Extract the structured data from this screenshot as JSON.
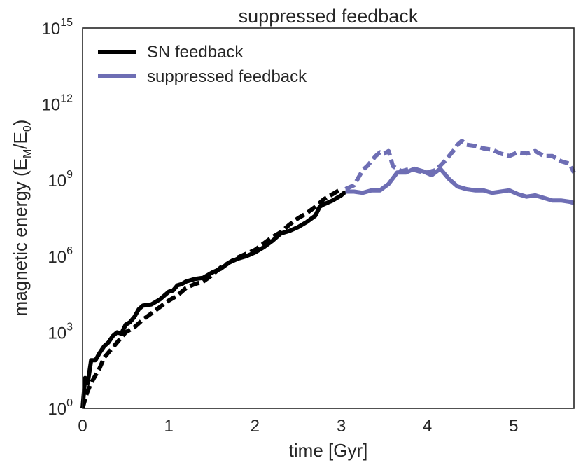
{
  "chart_data": {
    "type": "line",
    "title": "suppressed feedback",
    "xlabel": "time [Gyr]",
    "ylabel": "magnetic energy (E",
    "ylabel_sub1": "M",
    "ylabel_mid": "/E",
    "ylabel_sub2": "0",
    "ylabel_end": ")",
    "xlim": [
      0,
      5.7
    ],
    "ylim_log10": [
      0,
      15
    ],
    "x_ticks": [
      0,
      1,
      2,
      3,
      4,
      5
    ],
    "x_tick_labels": [
      "0",
      "1",
      "2",
      "3",
      "4",
      "5"
    ],
    "y_ticks_log10": [
      0,
      3,
      6,
      9,
      12,
      15
    ],
    "y_tick_base": "10",
    "y_tick_exponents": [
      "0",
      "3",
      "6",
      "9",
      "12",
      "15"
    ],
    "legend_position": "top-left",
    "colors": {
      "sn": "#000000",
      "suppressed": "#6e6eb4",
      "frame": "#262626"
    },
    "series": [
      {
        "name": "SN feedback",
        "legend": true,
        "color": "#000000",
        "style": "solid",
        "x": [
          0.0,
          0.03,
          0.06,
          0.1,
          0.15,
          0.2,
          0.25,
          0.3,
          0.35,
          0.4,
          0.45,
          0.5,
          0.55,
          0.6,
          0.65,
          0.7,
          0.8,
          0.9,
          1.0,
          1.05,
          1.1,
          1.15,
          1.2,
          1.3,
          1.4,
          1.5,
          1.6,
          1.7,
          1.8,
          1.9,
          2.0,
          2.1,
          2.2,
          2.3,
          2.4,
          2.5,
          2.6,
          2.7,
          2.75,
          2.8,
          2.9,
          3.0,
          3.05
        ],
        "log10y": [
          0.0,
          1.2,
          1.0,
          1.9,
          1.9,
          2.2,
          2.45,
          2.6,
          2.85,
          3.0,
          2.95,
          3.3,
          3.4,
          3.6,
          3.9,
          4.05,
          4.1,
          4.3,
          4.6,
          4.65,
          4.85,
          4.9,
          5.0,
          5.1,
          5.15,
          5.35,
          5.5,
          5.75,
          5.9,
          6.0,
          6.15,
          6.35,
          6.6,
          6.9,
          7.0,
          7.15,
          7.35,
          7.6,
          7.95,
          8.05,
          8.2,
          8.4,
          8.55
        ]
      },
      {
        "name": "SN feedback (dashed)",
        "legend": false,
        "color": "#000000",
        "style": "dashed",
        "x": [
          0.0,
          0.05,
          0.1,
          0.15,
          0.2,
          0.25,
          0.3,
          0.4,
          0.5,
          0.6,
          0.7,
          0.8,
          0.9,
          1.0,
          1.1,
          1.2,
          1.3,
          1.4,
          1.5,
          1.6,
          1.7,
          1.8,
          1.9,
          2.0,
          2.1,
          2.2,
          2.3,
          2.4,
          2.5,
          2.6,
          2.7,
          2.8,
          2.9,
          3.0
        ],
        "log10y": [
          0.0,
          0.6,
          1.0,
          1.3,
          1.6,
          2.0,
          2.2,
          2.6,
          3.0,
          3.2,
          3.5,
          3.75,
          4.0,
          4.25,
          4.45,
          4.75,
          4.9,
          5.0,
          5.25,
          5.55,
          5.75,
          5.95,
          6.1,
          6.25,
          6.5,
          6.75,
          6.95,
          7.25,
          7.5,
          7.7,
          7.95,
          8.25,
          8.45,
          8.65
        ]
      },
      {
        "name": "suppressed feedback",
        "legend": true,
        "color": "#6e6eb4",
        "style": "solid",
        "x": [
          3.05,
          3.15,
          3.25,
          3.35,
          3.45,
          3.55,
          3.65,
          3.75,
          3.85,
          3.95,
          4.05,
          4.15,
          4.25,
          4.35,
          4.45,
          4.55,
          4.65,
          4.75,
          4.85,
          4.95,
          5.05,
          5.15,
          5.25,
          5.35,
          5.45,
          5.55,
          5.65,
          5.7
        ],
        "log10y": [
          8.55,
          8.55,
          8.5,
          8.6,
          8.6,
          8.85,
          9.3,
          9.3,
          9.45,
          9.35,
          9.2,
          9.45,
          9.05,
          8.75,
          8.65,
          8.6,
          8.6,
          8.5,
          8.55,
          8.6,
          8.45,
          8.35,
          8.4,
          8.3,
          8.2,
          8.2,
          8.15,
          8.1
        ]
      },
      {
        "name": "suppressed feedback (dashed)",
        "legend": false,
        "color": "#6e6eb4",
        "style": "dashed",
        "x": [
          3.05,
          3.15,
          3.25,
          3.3,
          3.4,
          3.45,
          3.5,
          3.55,
          3.6,
          3.7,
          3.8,
          3.9,
          4.0,
          4.1,
          4.2,
          4.3,
          4.35,
          4.4,
          4.45,
          4.55,
          4.65,
          4.75,
          4.85,
          4.95,
          5.05,
          5.15,
          5.25,
          5.35,
          5.45,
          5.55,
          5.65,
          5.7
        ],
        "log10y": [
          8.65,
          8.8,
          9.4,
          9.55,
          9.95,
          10.1,
          10.05,
          10.15,
          9.55,
          9.35,
          9.45,
          9.35,
          9.3,
          9.4,
          9.75,
          10.15,
          10.4,
          10.55,
          10.4,
          10.35,
          10.25,
          10.2,
          10.05,
          9.95,
          10.1,
          10.05,
          10.15,
          9.95,
          9.95,
          9.75,
          9.65,
          9.3
        ]
      }
    ]
  }
}
